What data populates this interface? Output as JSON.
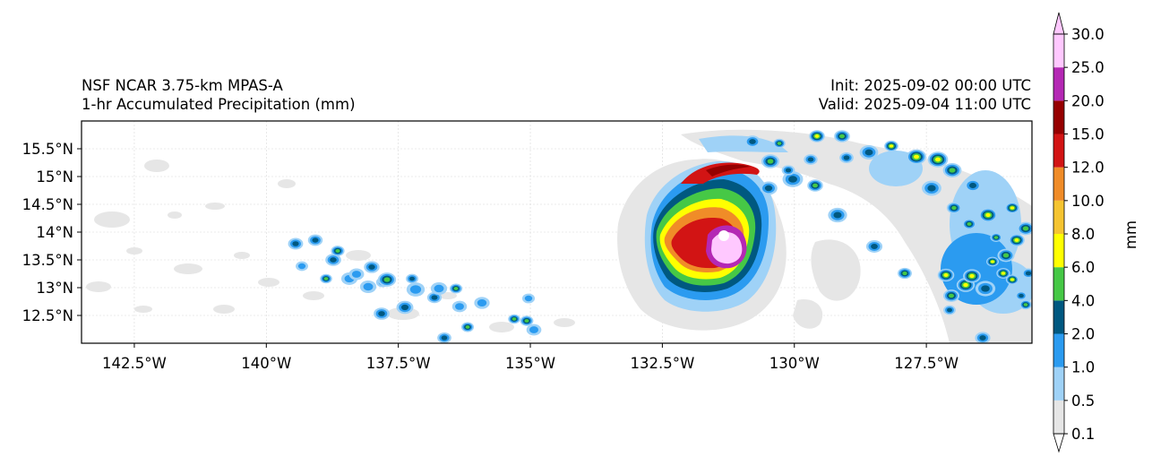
{
  "title": {
    "left_line1": "NSF NCAR 3.75-km MPAS-A",
    "left_line2": "1-hr Accumulated Precipitation (mm)",
    "right_line1": "Init: 2025-09-02 00:00 UTC",
    "right_line2": "Valid: 2025-09-04 11:00 UTC"
  },
  "map": {
    "lon_range": [
      -143.5,
      -125.5
    ],
    "lat_range": [
      12.0,
      16.0
    ],
    "x_ticks": [
      {
        "value": -142.5,
        "label": "142.5°W"
      },
      {
        "value": -140.0,
        "label": "140°W"
      },
      {
        "value": -137.5,
        "label": "137.5°W"
      },
      {
        "value": -135.0,
        "label": "135°W"
      },
      {
        "value": -132.5,
        "label": "132.5°W"
      },
      {
        "value": -130.0,
        "label": "130°W"
      },
      {
        "value": -127.5,
        "label": "127.5°W"
      }
    ],
    "y_ticks": [
      {
        "value": 15.5,
        "label": "15.5°N"
      },
      {
        "value": 15.0,
        "label": "15°N"
      },
      {
        "value": 14.5,
        "label": "14.5°N"
      },
      {
        "value": 14.0,
        "label": "14°N"
      },
      {
        "value": 13.5,
        "label": "13.5°N"
      },
      {
        "value": 13.0,
        "label": "13°N"
      },
      {
        "value": 12.5,
        "label": "12.5°N"
      }
    ],
    "storm_center": {
      "lon": -131.7,
      "lat": 13.9
    }
  },
  "colorbar": {
    "label": "mm",
    "levels": [
      "0.1",
      "0.5",
      "1.0",
      "2.0",
      "4.0",
      "6.0",
      "8.0",
      "10.0",
      "12.0",
      "15.0",
      "20.0",
      "25.0",
      "30.0"
    ],
    "colors": [
      "#e6e6e6",
      "#9fd2f7",
      "#2b9bf0",
      "#005880",
      "#46c846",
      "#ffff00",
      "#f5c431",
      "#f08c28",
      "#d21414",
      "#960000",
      "#b428b4",
      "#ffc8ff"
    ],
    "lower_extend_color": "#ffffff",
    "upper_extend_color": "#ffc8ff"
  }
}
